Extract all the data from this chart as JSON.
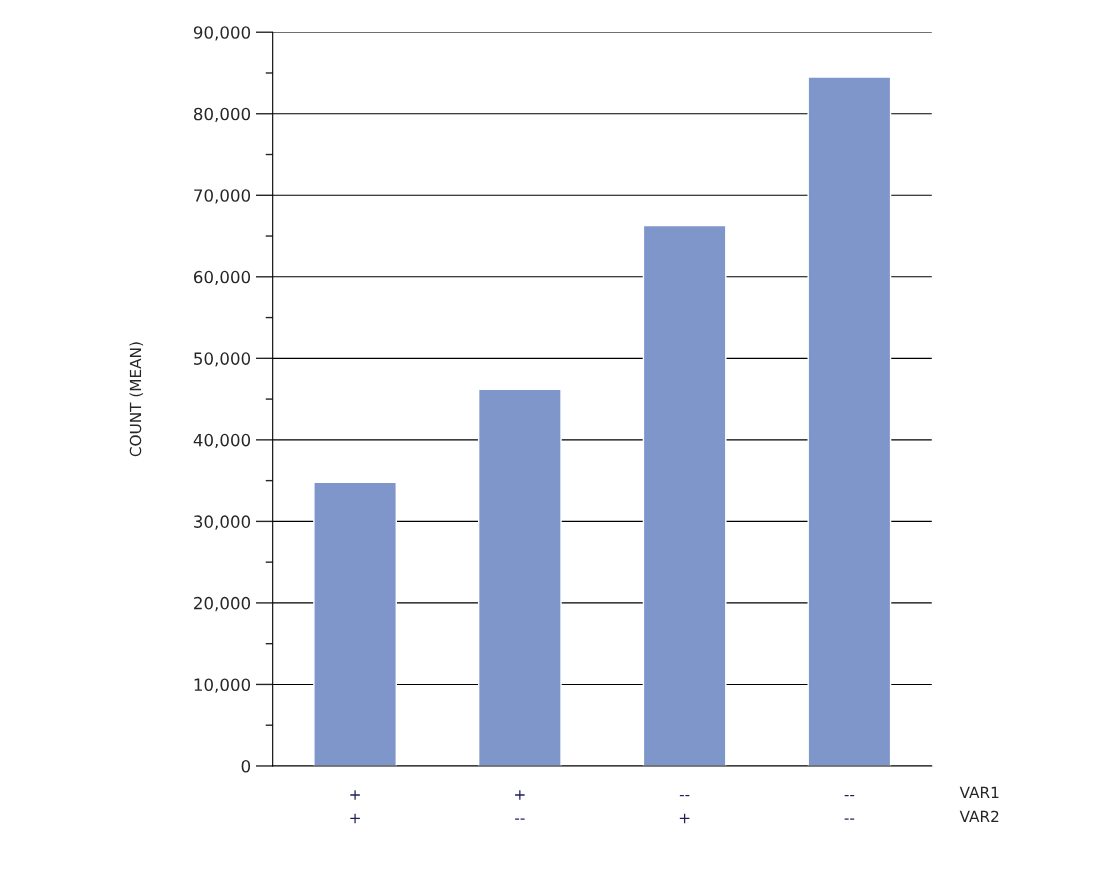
{
  "chart_data": {
    "type": "bar",
    "ylabel": "COUNT (MEAN)",
    "categories": [
      "+\n+",
      "+\n--",
      "--\n+",
      "--\n--"
    ],
    "values": [
      34800,
      46200,
      66300,
      84500
    ],
    "color": "#7f96cb",
    "ylim": [
      0,
      90000
    ],
    "yticks": [
      {
        "value": 0,
        "label": "0"
      },
      {
        "value": 5000,
        "label": null
      },
      {
        "value": 10000,
        "label": "10,000"
      },
      {
        "value": 15000,
        "label": null
      },
      {
        "value": 20000,
        "label": "20,000"
      },
      {
        "value": 25000,
        "label": null
      },
      {
        "value": 30000,
        "label": "30,000"
      },
      {
        "value": 35000,
        "label": null
      },
      {
        "value": 40000,
        "label": "40,000"
      },
      {
        "value": 45000,
        "label": null
      },
      {
        "value": 50000,
        "label": "50,000"
      },
      {
        "value": 55000,
        "label": null
      },
      {
        "value": 60000,
        "label": "60,000"
      },
      {
        "value": 65000,
        "label": null
      },
      {
        "value": 70000,
        "label": "70,000"
      },
      {
        "value": 75000,
        "label": null
      },
      {
        "value": 80000,
        "label": "80,000"
      },
      {
        "value": 85000,
        "label": null
      },
      {
        "value": 90000,
        "label": "90,000"
      }
    ],
    "grid": "y",
    "annotations": [
      "VAR1",
      "VAR2"
    ]
  }
}
